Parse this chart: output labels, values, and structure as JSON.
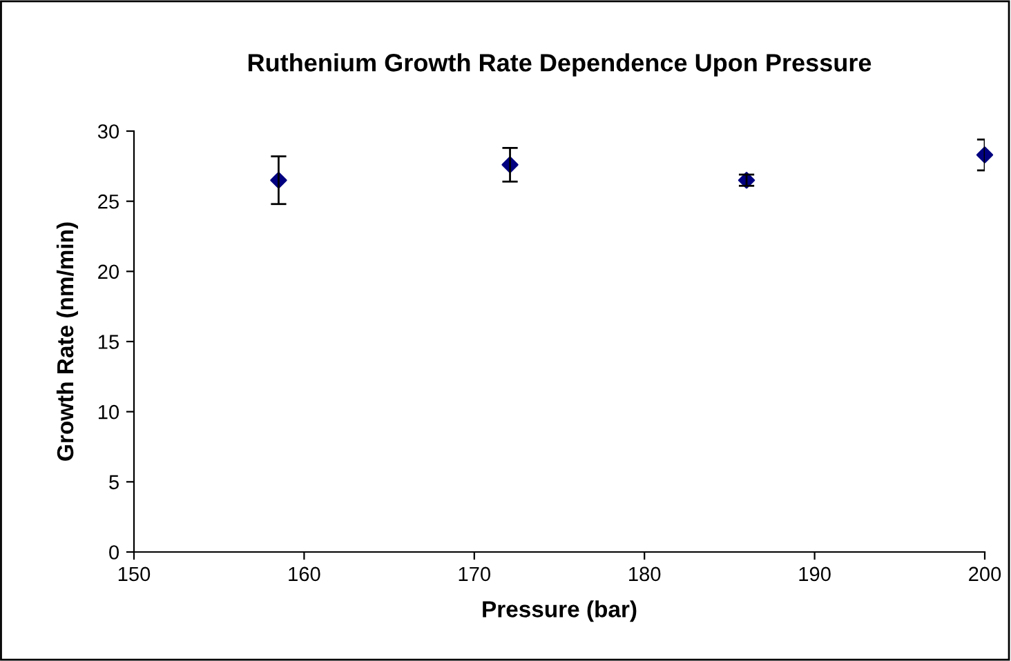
{
  "chart_data": {
    "type": "scatter",
    "title": "Ruthenium Growth Rate Dependence Upon Pressure",
    "xlabel": "Pressure (bar)",
    "ylabel": "Growth Rate (nm/min)",
    "x": [
      158.5,
      172.1,
      186.0,
      200.0
    ],
    "values": [
      26.5,
      27.6,
      26.5,
      28.3
    ],
    "errors": [
      1.7,
      1.2,
      0.4,
      1.1
    ],
    "color": "#000080",
    "marker": "diamond",
    "xlim": [
      150,
      200
    ],
    "xticks": [
      150,
      160,
      170,
      180,
      190,
      200
    ],
    "ylim": [
      0,
      30
    ],
    "yticks": [
      0,
      5,
      10,
      15,
      20,
      25,
      30
    ],
    "grid": false,
    "legend": false
  }
}
